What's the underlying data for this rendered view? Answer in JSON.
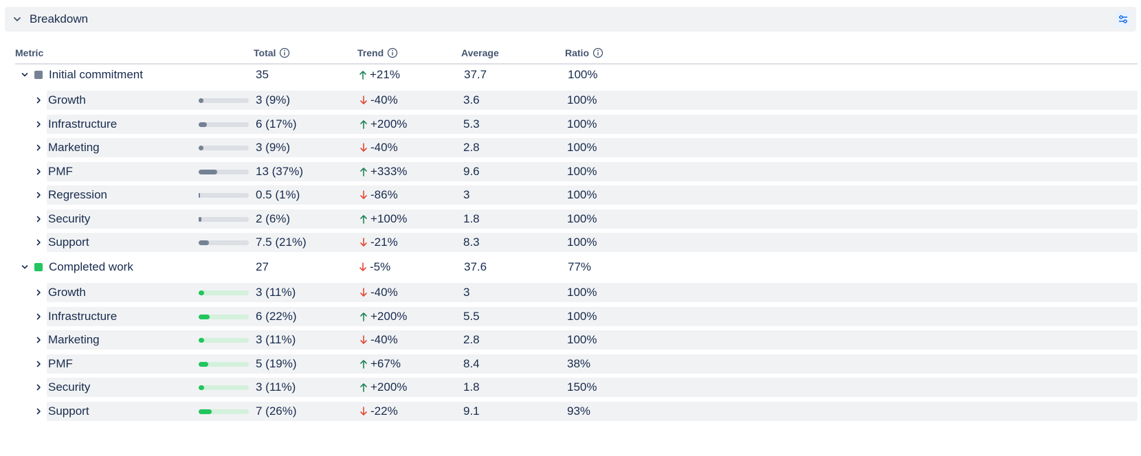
{
  "header": {
    "title": "Breakdown"
  },
  "columns": {
    "metric": "Metric",
    "total": "Total",
    "trend": "Trend",
    "average": "Average",
    "ratio": "Ratio"
  },
  "colors": {
    "commitment": "#758195",
    "commitment_track": "#dcdfe4",
    "completed": "#22c55e",
    "completed_track": "#d3f1dc",
    "up": "#1f845a",
    "down": "#e34935"
  },
  "groups": [
    {
      "label": "Initial commitment",
      "total": "35",
      "trend": "+21%",
      "trend_dir": "up",
      "average": "37.7",
      "ratio": "100%",
      "color_key": "commitment",
      "rows": [
        {
          "label": "Growth",
          "total": "3 (9%)",
          "share": 0.09,
          "trend": "-40%",
          "trend_dir": "down",
          "average": "3.6",
          "ratio": "100%"
        },
        {
          "label": "Infrastructure",
          "total": "6 (17%)",
          "share": 0.17,
          "trend": "+200%",
          "trend_dir": "up",
          "average": "5.3",
          "ratio": "100%"
        },
        {
          "label": "Marketing",
          "total": "3 (9%)",
          "share": 0.09,
          "trend": "-40%",
          "trend_dir": "down",
          "average": "2.8",
          "ratio": "100%"
        },
        {
          "label": "PMF",
          "total": "13 (37%)",
          "share": 0.37,
          "trend": "+333%",
          "trend_dir": "up",
          "average": "9.6",
          "ratio": "100%"
        },
        {
          "label": "Regression",
          "total": "0.5 (1%)",
          "share": 0.01,
          "trend": "-86%",
          "trend_dir": "down",
          "average": "3",
          "ratio": "100%"
        },
        {
          "label": "Security",
          "total": "2 (6%)",
          "share": 0.06,
          "trend": "+100%",
          "trend_dir": "up",
          "average": "1.8",
          "ratio": "100%"
        },
        {
          "label": "Support",
          "total": "7.5 (21%)",
          "share": 0.21,
          "trend": "-21%",
          "trend_dir": "down",
          "average": "8.3",
          "ratio": "100%"
        }
      ]
    },
    {
      "label": "Completed work",
      "total": "27",
      "trend": "-5%",
      "trend_dir": "down",
      "average": "37.6",
      "ratio": "77%",
      "color_key": "completed",
      "rows": [
        {
          "label": "Growth",
          "total": "3 (11%)",
          "share": 0.11,
          "trend": "-40%",
          "trend_dir": "down",
          "average": "3",
          "ratio": "100%"
        },
        {
          "label": "Infrastructure",
          "total": "6 (22%)",
          "share": 0.22,
          "trend": "+200%",
          "trend_dir": "up",
          "average": "5.5",
          "ratio": "100%"
        },
        {
          "label": "Marketing",
          "total": "3 (11%)",
          "share": 0.11,
          "trend": "-40%",
          "trend_dir": "down",
          "average": "2.8",
          "ratio": "100%"
        },
        {
          "label": "PMF",
          "total": "5 (19%)",
          "share": 0.19,
          "trend": "+67%",
          "trend_dir": "up",
          "average": "8.4",
          "ratio": "38%"
        },
        {
          "label": "Security",
          "total": "3 (11%)",
          "share": 0.11,
          "trend": "+200%",
          "trend_dir": "up",
          "average": "1.8",
          "ratio": "150%"
        },
        {
          "label": "Support",
          "total": "7 (26%)",
          "share": 0.26,
          "trend": "-22%",
          "trend_dir": "down",
          "average": "9.1",
          "ratio": "93%"
        }
      ]
    }
  ]
}
